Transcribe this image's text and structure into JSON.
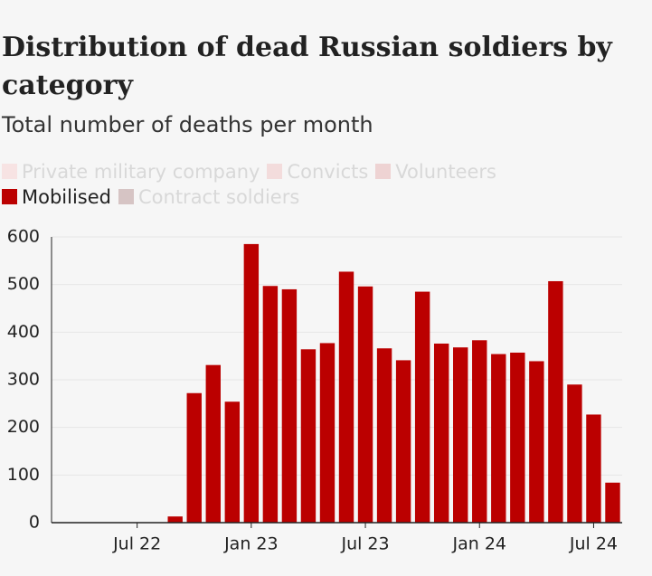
{
  "chart_data": {
    "type": "bar",
    "title": "Distribution of dead Russian soldiers by category",
    "subtitle": "Total number of deaths per month",
    "legend": [
      {
        "name": "Private military company",
        "color": "#f7e3e3"
      },
      {
        "name": "Convicts",
        "color": "#f3dcdc"
      },
      {
        "name": "Volunteers",
        "color": "#eed3d3"
      },
      {
        "name": "Mobilised",
        "color": "#bb0000"
      },
      {
        "name": "Contract soldiers",
        "color": "#d6c4c4"
      }
    ],
    "categories": [
      null,
      null,
      null,
      null,
      "Jul 22",
      null,
      null,
      null,
      null,
      null,
      "Jan 23",
      null,
      null,
      null,
      null,
      null,
      "Jul 23",
      null,
      null,
      null,
      null,
      null,
      "Jan 24",
      null,
      null,
      null,
      null,
      null,
      "Jul 24",
      null
    ],
    "series": [
      {
        "name": "Mobilised",
        "color": "#bb0000",
        "values": [
          0,
          0,
          0,
          0,
          0,
          0,
          13,
          272,
          331,
          254,
          585,
          497,
          490,
          364,
          377,
          527,
          496,
          366,
          341,
          485,
          376,
          368,
          383,
          354,
          357,
          339,
          507,
          290,
          227,
          84
        ]
      }
    ],
    "ylim": [
      0,
      600
    ],
    "yticks": [
      0,
      100,
      200,
      300,
      400,
      500,
      600
    ],
    "grid": true
  }
}
